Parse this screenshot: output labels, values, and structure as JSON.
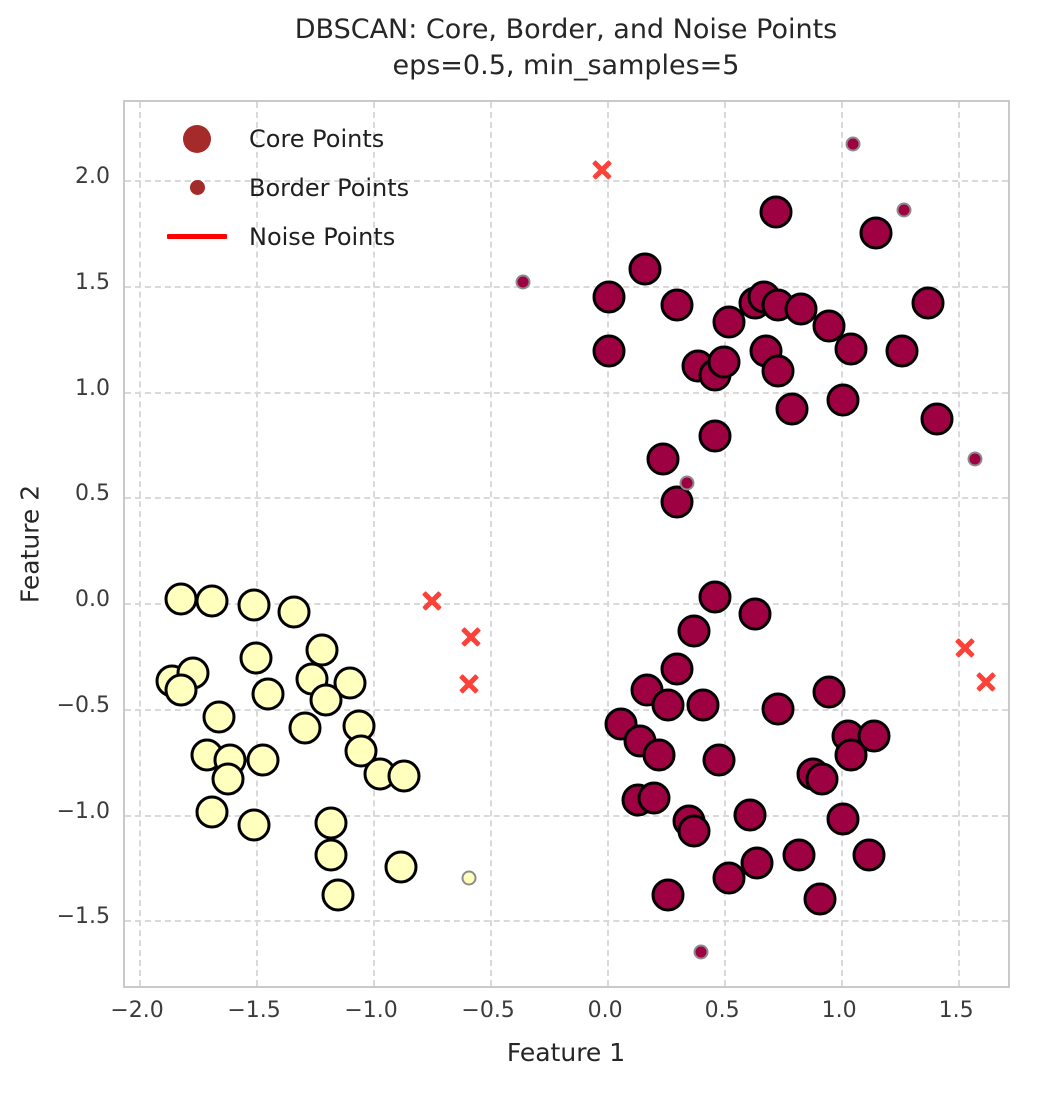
{
  "title": {
    "line1": "DBSCAN: Core, Border, and Noise Points",
    "line2": "eps=0.5, min_samples=5"
  },
  "axes": {
    "xlabel": "Feature 1",
    "ylabel": "Feature 2"
  },
  "legend": {
    "items": [
      {
        "label": "Core Points",
        "marker": "large-circle",
        "color": "#A52A2A"
      },
      {
        "label": "Border Points",
        "marker": "small-circle",
        "color": "#A52A2A"
      },
      {
        "label": "Noise Points",
        "marker": "line",
        "color": "#ff0000"
      }
    ]
  },
  "colors": {
    "cluster0_fill": "#9E0142",
    "cluster1_fill": "#FFFFBE",
    "core_edge": "#000000",
    "border_edge": "#8c8c8c",
    "noise": "#fb4138",
    "grid": "#d9d9d9",
    "spine": "#c9c9c9",
    "background": "#ffffff"
  },
  "chart_data": {
    "type": "scatter",
    "title": "DBSCAN: Core, Border, and Noise Points",
    "subtitle": "eps=0.5, min_samples=5",
    "xlabel": "Feature 1",
    "ylabel": "Feature 2",
    "grid": true,
    "legend_position": "upper-left",
    "xlim": [
      -2.06,
      1.73
    ],
    "ylim": [
      -1.83,
      2.37
    ],
    "x_ticks": {
      "values": [
        -2.0,
        -1.5,
        -1.0,
        -0.5,
        0.0,
        0.5,
        1.0,
        1.5
      ],
      "labels": [
        "−2.0",
        "−1.5",
        "−1.0",
        "−0.5",
        "0.0",
        "0.5",
        "1.0",
        "1.5"
      ]
    },
    "y_ticks": {
      "values": [
        2.0,
        1.5,
        1.0,
        0.5,
        0.0,
        -0.5,
        -1.0,
        -1.5
      ],
      "labels": [
        "2.0",
        "1.5",
        "1.0",
        "0.5",
        "0.0",
        "−0.5",
        "−1.0",
        "−1.5"
      ]
    },
    "series": [
      {
        "name": "core-points-cluster-0",
        "role": "core",
        "marker": "circle",
        "fill": "#9E0142",
        "edge": "#000000",
        "size": 33,
        "points": [
          [
            0.01,
            1.45
          ],
          [
            0.16,
            1.58
          ],
          [
            0.3,
            1.41
          ],
          [
            0.52,
            1.33
          ],
          [
            0.63,
            1.42
          ],
          [
            0.67,
            1.45
          ],
          [
            0.73,
            1.41
          ],
          [
            0.83,
            1.39
          ],
          [
            0.95,
            1.31
          ],
          [
            0.01,
            1.19
          ],
          [
            0.68,
            1.19
          ],
          [
            0.39,
            1.12
          ],
          [
            0.46,
            1.08
          ],
          [
            0.5,
            1.14
          ],
          [
            0.73,
            1.1
          ],
          [
            0.72,
            1.85
          ],
          [
            1.15,
            1.75
          ],
          [
            1.37,
            1.42
          ],
          [
            1.04,
            1.2
          ],
          [
            1.26,
            1.19
          ],
          [
            1.01,
            0.96
          ],
          [
            1.41,
            0.87
          ],
          [
            0.79,
            0.92
          ],
          [
            0.46,
            0.79
          ],
          [
            0.24,
            0.68
          ],
          [
            0.3,
            0.48
          ],
          [
            0.46,
            0.03
          ],
          [
            0.63,
            -0.05
          ],
          [
            0.37,
            -0.13
          ],
          [
            0.3,
            -0.31
          ],
          [
            0.17,
            -0.41
          ],
          [
            0.26,
            -0.48
          ],
          [
            0.41,
            -0.48
          ],
          [
            0.73,
            -0.5
          ],
          [
            0.95,
            -0.42
          ],
          [
            0.06,
            -0.57
          ],
          [
            0.14,
            -0.65
          ],
          [
            0.22,
            -0.72
          ],
          [
            0.48,
            -0.74
          ],
          [
            0.88,
            -0.81
          ],
          [
            0.92,
            -0.83
          ],
          [
            1.03,
            -0.63
          ],
          [
            1.14,
            -0.63
          ],
          [
            1.04,
            -0.72
          ],
          [
            0.13,
            -0.93
          ],
          [
            0.2,
            -0.92
          ],
          [
            0.35,
            -1.03
          ],
          [
            0.37,
            -1.08
          ],
          [
            0.61,
            -1.0
          ],
          [
            1.01,
            -1.02
          ],
          [
            0.64,
            -1.23
          ],
          [
            0.52,
            -1.3
          ],
          [
            0.82,
            -1.19
          ],
          [
            1.12,
            -1.19
          ],
          [
            0.26,
            -1.38
          ],
          [
            0.91,
            -1.4
          ]
        ]
      },
      {
        "name": "core-points-cluster-1",
        "role": "core",
        "marker": "circle",
        "fill": "#FFFFBE",
        "edge": "#000000",
        "size": 33,
        "points": [
          [
            -1.82,
            0.02
          ],
          [
            -1.69,
            0.01
          ],
          [
            -1.51,
            -0.01
          ],
          [
            -1.34,
            -0.04
          ],
          [
            -1.5,
            -0.26
          ],
          [
            -1.22,
            -0.22
          ],
          [
            -1.86,
            -0.37
          ],
          [
            -1.77,
            -0.33
          ],
          [
            -1.82,
            -0.41
          ],
          [
            -1.26,
            -0.36
          ],
          [
            -1.1,
            -0.38
          ],
          [
            -1.2,
            -0.46
          ],
          [
            -1.45,
            -0.43
          ],
          [
            -1.66,
            -0.54
          ],
          [
            -1.29,
            -0.59
          ],
          [
            -1.06,
            -0.58
          ],
          [
            -1.05,
            -0.7
          ],
          [
            -1.71,
            -0.72
          ],
          [
            -1.61,
            -0.74
          ],
          [
            -1.62,
            -0.83
          ],
          [
            -1.47,
            -0.74
          ],
          [
            -0.97,
            -0.81
          ],
          [
            -0.87,
            -0.82
          ],
          [
            -1.69,
            -0.99
          ],
          [
            -1.51,
            -1.05
          ],
          [
            -1.18,
            -1.04
          ],
          [
            -1.18,
            -1.19
          ],
          [
            -1.15,
            -1.38
          ],
          [
            -0.88,
            -1.25
          ]
        ]
      },
      {
        "name": "border-points-cluster-0",
        "role": "border",
        "marker": "circle",
        "fill": "#9E0142",
        "edge": "#8c8c8c",
        "size": 15,
        "points": [
          [
            -0.36,
            1.52
          ],
          [
            1.05,
            2.17
          ],
          [
            1.27,
            1.86
          ],
          [
            1.57,
            0.68
          ],
          [
            0.34,
            0.57
          ],
          [
            0.4,
            -1.65
          ]
        ]
      },
      {
        "name": "border-points-cluster-1",
        "role": "border",
        "marker": "circle",
        "fill": "#FFFFBE",
        "edge": "#8c8c8c",
        "size": 15,
        "points": [
          [
            -0.59,
            -1.3
          ]
        ]
      },
      {
        "name": "noise-points",
        "role": "noise",
        "marker": "x",
        "fill": "#fb4138",
        "size": 23,
        "points": [
          [
            -0.02,
            2.05
          ],
          [
            -0.75,
            0.01
          ],
          [
            -0.58,
            -0.16
          ],
          [
            -0.59,
            -0.38
          ],
          [
            1.53,
            -0.21
          ],
          [
            1.62,
            -0.37
          ]
        ]
      }
    ]
  }
}
